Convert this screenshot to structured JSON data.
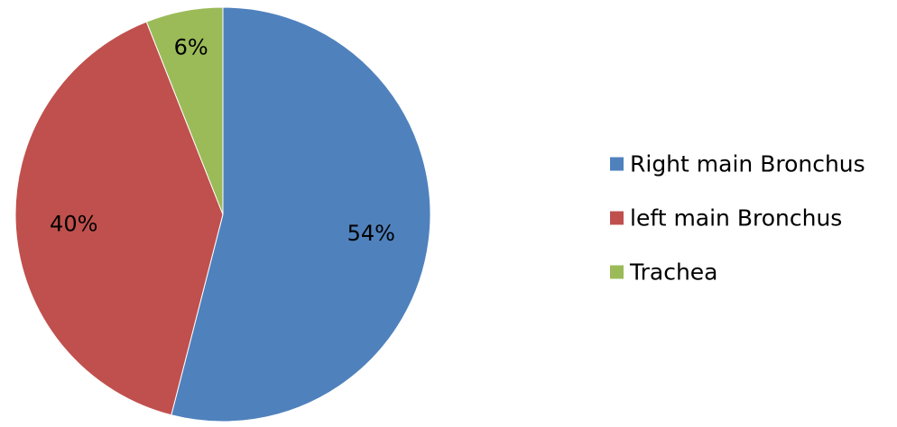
{
  "chart_data": {
    "type": "pie",
    "slices": [
      {
        "label": "Right main Bronchus",
        "value": 54,
        "display": "54%",
        "color": "#4F81BD"
      },
      {
        "label": "left main Bronchus",
        "value": 40,
        "display": "40%",
        "color": "#C0504D"
      },
      {
        "label": "Trachea",
        "value": 6,
        "display": "6%",
        "color": "#9BBB59"
      }
    ],
    "start_angle": "12 o'clock, clockwise",
    "legend_position": "right",
    "title": ""
  }
}
